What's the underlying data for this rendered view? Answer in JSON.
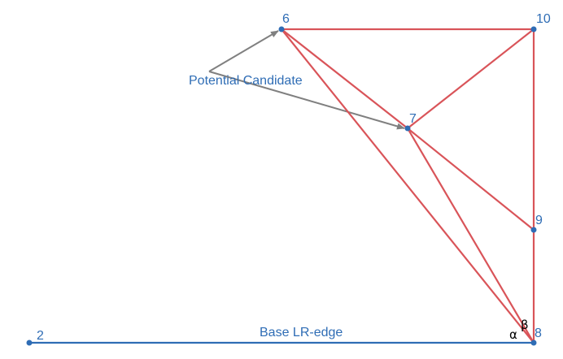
{
  "colors": {
    "triangle_edge": "#d95459",
    "base_edge": "#2f6db5",
    "arrow": "#808080",
    "point": "#2f6db5",
    "label": "#2f6db5",
    "angle_label": "#000000"
  },
  "diagram": {
    "points": {
      "p2": "2",
      "p6": "6",
      "p7": "7",
      "p8": "8",
      "p9": "9",
      "p10": "10"
    },
    "annotations": {
      "potential_candidate": "Potential Candidate",
      "base_edge": "Base LR-edge",
      "alpha": "α",
      "beta": "β"
    }
  }
}
